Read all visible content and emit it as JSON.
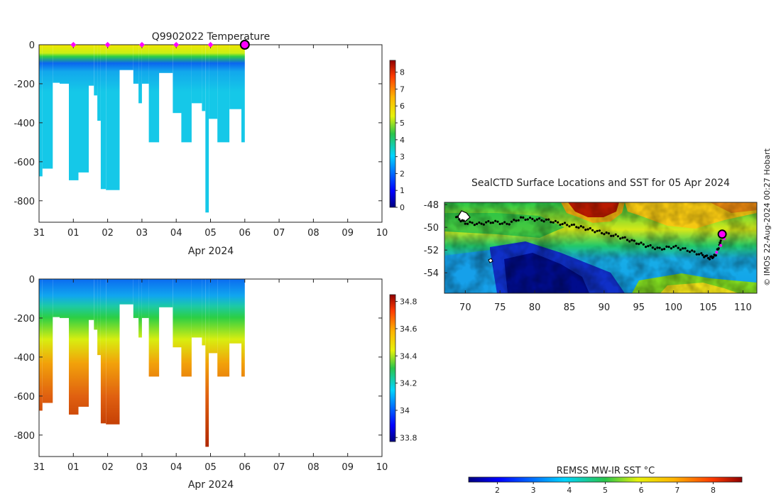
{
  "credit": "© IMOS 22-Aug-2024 00:27 Hobart",
  "chart_data": [
    {
      "type": "heatmap",
      "title": "Q9902022  Temperature",
      "xlabel": "Apr 2024",
      "ylabel": "",
      "x_tick_labels": [
        "31",
        "01",
        "02",
        "03",
        "04",
        "05",
        "06",
        "07",
        "08",
        "09",
        "10"
      ],
      "xlim": [
        0,
        10
      ],
      "y_ticks": [
        0,
        -200,
        -400,
        -600,
        -800
      ],
      "ylim": [
        -910,
        0
      ],
      "colorbar": {
        "ticks": [
          0,
          1,
          2,
          3,
          4,
          5,
          6,
          7,
          8
        ],
        "range": [
          0,
          8.7
        ],
        "colormap": "jet"
      },
      "surface_markers_x": [
        1,
        2,
        3,
        4,
        5
      ],
      "last_profile_x": 6,
      "marker_color": "#ff00ff",
      "profiles": [
        {
          "x0": 0.0,
          "x1": 0.1,
          "max_depth": 675
        },
        {
          "x0": 0.1,
          "x1": 0.4,
          "max_depth": 635
        },
        {
          "x0": 0.4,
          "x1": 0.6,
          "max_depth": 195
        },
        {
          "x0": 0.6,
          "x1": 0.87,
          "max_depth": 200
        },
        {
          "x0": 0.87,
          "x1": 1.15,
          "max_depth": 695
        },
        {
          "x0": 1.15,
          "x1": 1.45,
          "max_depth": 655
        },
        {
          "x0": 1.45,
          "x1": 1.6,
          "max_depth": 210
        },
        {
          "x0": 1.6,
          "x1": 1.7,
          "max_depth": 260
        },
        {
          "x0": 1.7,
          "x1": 1.8,
          "max_depth": 390
        },
        {
          "x0": 1.8,
          "x1": 1.95,
          "max_depth": 740
        },
        {
          "x0": 1.95,
          "x1": 2.35,
          "max_depth": 745
        },
        {
          "x0": 2.35,
          "x1": 2.75,
          "max_depth": 130
        },
        {
          "x0": 2.75,
          "x1": 2.9,
          "max_depth": 200
        },
        {
          "x0": 2.9,
          "x1": 3.0,
          "max_depth": 300
        },
        {
          "x0": 3.0,
          "x1": 3.2,
          "max_depth": 200
        },
        {
          "x0": 3.2,
          "x1": 3.5,
          "max_depth": 500
        },
        {
          "x0": 3.5,
          "x1": 3.9,
          "max_depth": 145
        },
        {
          "x0": 3.9,
          "x1": 4.15,
          "max_depth": 350
        },
        {
          "x0": 4.15,
          "x1": 4.45,
          "max_depth": 500
        },
        {
          "x0": 4.45,
          "x1": 4.75,
          "max_depth": 300
        },
        {
          "x0": 4.75,
          "x1": 4.85,
          "max_depth": 340
        },
        {
          "x0": 4.85,
          "x1": 4.95,
          "max_depth": 860
        },
        {
          "x0": 4.95,
          "x1": 5.2,
          "max_depth": 380
        },
        {
          "x0": 5.2,
          "x1": 5.55,
          "max_depth": 500
        },
        {
          "x0": 5.55,
          "x1": 5.9,
          "max_depth": 330
        },
        {
          "x0": 5.9,
          "x1": 6.0,
          "max_depth": 500
        }
      ],
      "depth_profile_sample": [
        {
          "depth": 0,
          "value": 5.5
        },
        {
          "depth": 50,
          "value": 5.0
        },
        {
          "depth": 100,
          "value": 3.2
        },
        {
          "depth": 160,
          "value": 2.0
        },
        {
          "depth": 250,
          "value": 2.3
        },
        {
          "depth": 500,
          "value": 2.3
        },
        {
          "depth": 860,
          "value": 2.2
        }
      ]
    },
    {
      "type": "heatmap",
      "title": "",
      "xlabel": "Apr 2024",
      "ylabel": "",
      "x_tick_labels": [
        "31",
        "01",
        "02",
        "03",
        "04",
        "05",
        "06",
        "07",
        "08",
        "09",
        "10"
      ],
      "xlim": [
        0,
        10
      ],
      "y_ticks": [
        0,
        -200,
        -400,
        -600,
        -800
      ],
      "ylim": [
        -910,
        0
      ],
      "colorbar": {
        "ticks": [
          33.8,
          34,
          34.2,
          34.4,
          34.6,
          34.8
        ],
        "range": [
          33.77,
          34.85
        ],
        "colormap": "jet"
      },
      "depth_profile_sample": [
        {
          "depth": 0,
          "value": 33.9
        },
        {
          "depth": 120,
          "value": 33.95
        },
        {
          "depth": 200,
          "value": 34.15
        },
        {
          "depth": 300,
          "value": 34.35
        },
        {
          "depth": 450,
          "value": 34.55
        },
        {
          "depth": 650,
          "value": 34.72
        },
        {
          "depth": 860,
          "value": 34.78
        }
      ]
    },
    {
      "type": "heatmap",
      "title": "SealCTD Surface Locations and SST for 05 Apr 2024",
      "xlabel": "",
      "ylabel": "",
      "x_ticks": [
        70,
        75,
        80,
        85,
        90,
        95,
        100,
        105,
        110
      ],
      "xlim": [
        67,
        112
      ],
      "y_ticks": [
        -48,
        -50,
        -52,
        -54
      ],
      "ylim": [
        -55.8,
        -47.8
      ],
      "colorbar": {
        "label": "REMSS MW-IR SST °C",
        "ticks": [
          2,
          3,
          4,
          5,
          6,
          7,
          8
        ],
        "range": [
          1.2,
          8.8
        ],
        "colormap": "jet"
      },
      "track": [
        [
          68.7,
          -49.1
        ],
        [
          70.0,
          -49.6
        ],
        [
          72.0,
          -49.7
        ],
        [
          74.0,
          -49.5
        ],
        [
          76.0,
          -49.7
        ],
        [
          78.0,
          -49.2
        ],
        [
          80.0,
          -49.3
        ],
        [
          82.0,
          -49.4
        ],
        [
          84.0,
          -49.7
        ],
        [
          86.0,
          -49.9
        ],
        [
          88.0,
          -50.2
        ],
        [
          90.0,
          -50.5
        ],
        [
          92.0,
          -50.8
        ],
        [
          94.0,
          -51.2
        ],
        [
          96.0,
          -51.6
        ],
        [
          98.0,
          -51.9
        ],
        [
          100.0,
          -51.7
        ],
        [
          102.0,
          -52.0
        ],
        [
          104.0,
          -52.4
        ],
        [
          105.2,
          -52.7
        ],
        [
          106.0,
          -52.5
        ],
        [
          106.6,
          -51.6
        ],
        [
          107.0,
          -50.6
        ]
      ],
      "latest_position": [
        107.0,
        -50.6
      ],
      "recent_track": [
        [
          106.2,
          -52.2
        ],
        [
          106.8,
          -51.6
        ],
        [
          107.3,
          -51.0
        ]
      ],
      "track_color": "#000000",
      "marker_color": "#ff00ff"
    }
  ]
}
